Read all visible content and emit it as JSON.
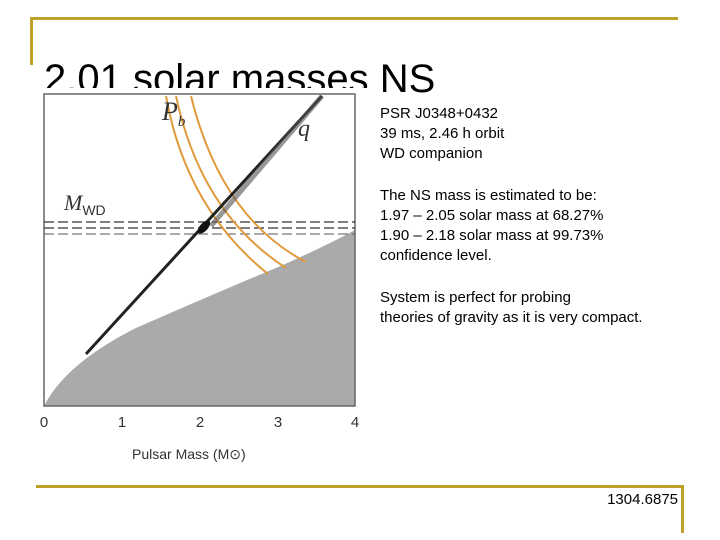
{
  "slide": {
    "title": "2.01 solar masses NS",
    "paragraphs": [
      [
        "PSR J0348+0432",
        "39 ms, 2.46 h orbit",
        "WD companion"
      ],
      [
        "The NS mass is estimated to be:",
        "1.97 – 2.05 solar mass at 68.27%",
        "1.90 – 2.18 solar mass at 99.73%",
        "confidence level."
      ],
      [
        "System is perfect for probing",
        "theories of gravity as it is very compact."
      ]
    ],
    "reference": "1304.6875"
  },
  "colors": {
    "accent_gold": "#bfa12a",
    "orange_curves": "#e09a3c",
    "excluded_region": "#aaaaaa"
  },
  "figure": {
    "x_ticks": [
      "0",
      "1",
      "2",
      "3",
      "4"
    ],
    "x_axis_title": "Pulsar Mass (M⊙)",
    "label_pb": "P",
    "label_pb_sub": "b",
    "label_q": "q",
    "label_mwd": "M",
    "label_mwd_sub": "WD"
  }
}
